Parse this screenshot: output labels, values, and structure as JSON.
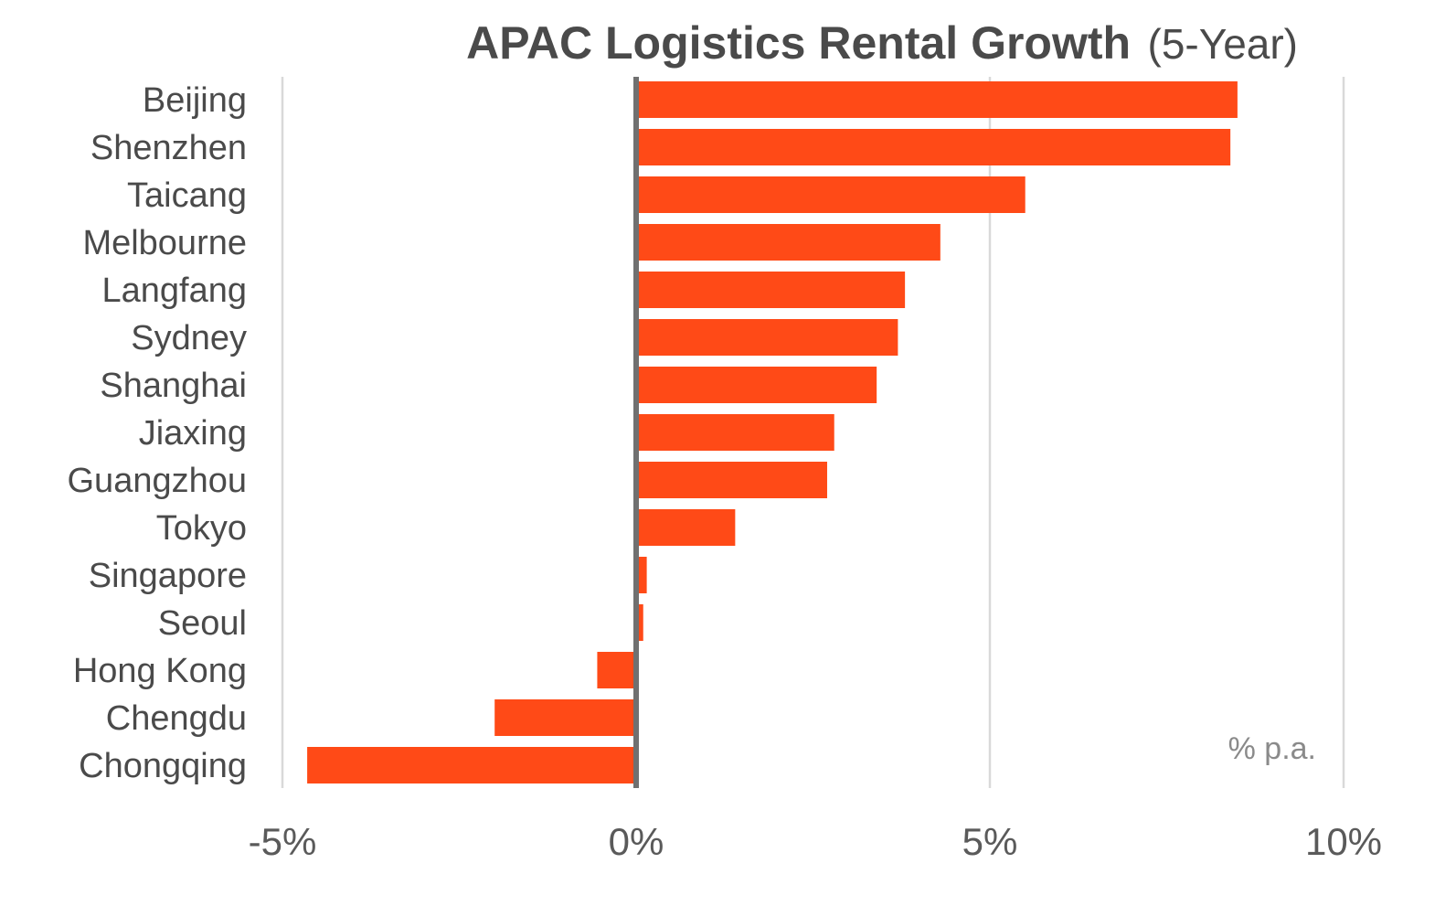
{
  "chart_data": {
    "type": "bar",
    "orientation": "horizontal",
    "title": "APAC Logistics Rental Growth",
    "subtitle": "(5-Year)",
    "unit_note": "% p.a.",
    "categories": [
      "Beijing",
      "Shenzhen",
      "Taicang",
      "Melbourne",
      "Langfang",
      "Sydney",
      "Shanghai",
      "Jiaxing",
      "Guangzhou",
      "Tokyo",
      "Singapore",
      "Seoul",
      "Hong Kong",
      "Chengdu",
      "Chongqing"
    ],
    "values": [
      8.5,
      8.4,
      5.5,
      4.3,
      3.8,
      3.7,
      3.4,
      2.8,
      2.7,
      1.4,
      0.15,
      0.1,
      -0.55,
      -2.0,
      -4.65
    ],
    "xlim": [
      -5,
      10
    ],
    "xticks": [
      -5,
      0,
      5,
      10
    ],
    "xtick_labels": [
      "-5%",
      "0%",
      "5%",
      "10%"
    ],
    "grid": true,
    "bar_color": "#ff4a17",
    "axis_color": "#707070",
    "grid_color": "#d9d9d9",
    "text_color": "#4a4a4a"
  }
}
